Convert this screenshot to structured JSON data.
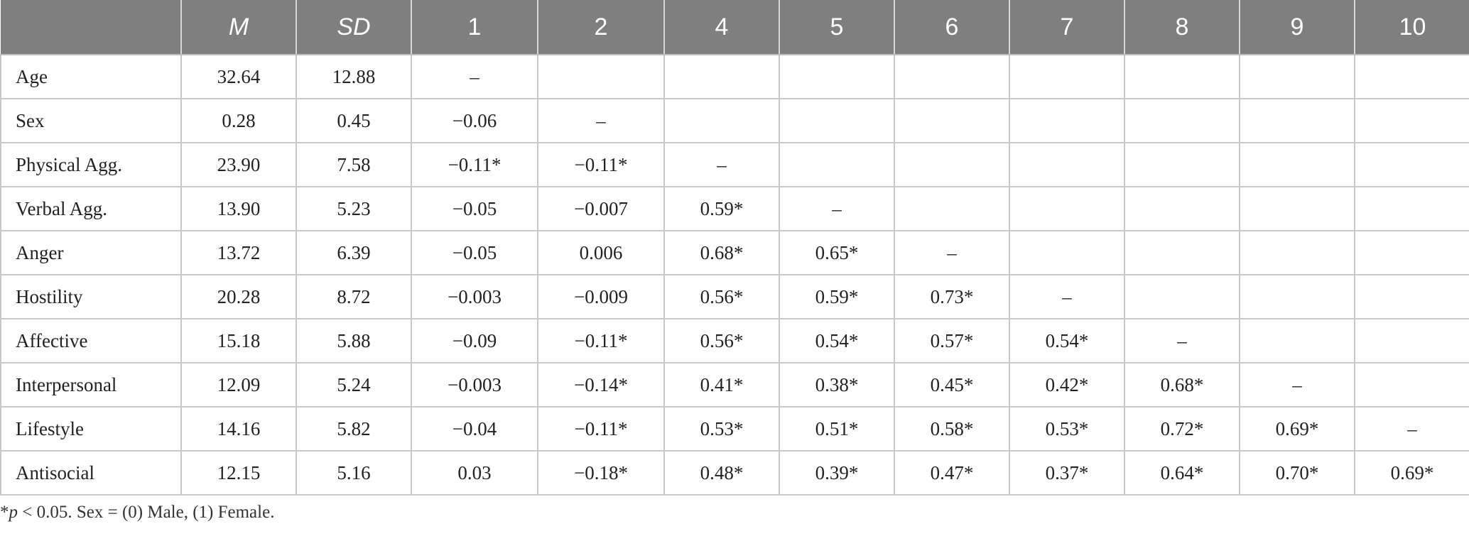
{
  "table": {
    "headers": [
      "",
      "M",
      "SD",
      "1",
      "2",
      "4",
      "5",
      "6",
      "7",
      "8",
      "9",
      "10"
    ],
    "rows": [
      {
        "label": "Age",
        "cells": [
          "32.64",
          "12.88",
          "–",
          "",
          "",
          "",
          "",
          "",
          "",
          "",
          ""
        ]
      },
      {
        "label": "Sex",
        "cells": [
          "0.28",
          "0.45",
          "−0.06",
          "–",
          "",
          "",
          "",
          "",
          "",
          "",
          ""
        ]
      },
      {
        "label": "Physical Agg.",
        "cells": [
          "23.90",
          "7.58",
          "−0.11*",
          "−0.11*",
          "–",
          "",
          "",
          "",
          "",
          "",
          ""
        ]
      },
      {
        "label": "Verbal Agg.",
        "cells": [
          "13.90",
          "5.23",
          "−0.05",
          "−0.007",
          "0.59*",
          "–",
          "",
          "",
          "",
          "",
          ""
        ]
      },
      {
        "label": "Anger",
        "cells": [
          "13.72",
          "6.39",
          "−0.05",
          "0.006",
          "0.68*",
          "0.65*",
          "–",
          "",
          "",
          "",
          ""
        ]
      },
      {
        "label": "Hostility",
        "cells": [
          "20.28",
          "8.72",
          "−0.003",
          "−0.009",
          "0.56*",
          "0.59*",
          "0.73*",
          "–",
          "",
          "",
          ""
        ]
      },
      {
        "label": "Affective",
        "cells": [
          "15.18",
          "5.88",
          "−0.09",
          "−0.11*",
          "0.56*",
          "0.54*",
          "0.57*",
          "0.54*",
          "–",
          "",
          ""
        ]
      },
      {
        "label": "Interpersonal",
        "cells": [
          "12.09",
          "5.24",
          "−0.003",
          "−0.14*",
          "0.41*",
          "0.38*",
          "0.45*",
          "0.42*",
          "0.68*",
          "–",
          ""
        ]
      },
      {
        "label": "Lifestyle",
        "cells": [
          "14.16",
          "5.82",
          "−0.04",
          "−0.11*",
          "0.53*",
          "0.51*",
          "0.58*",
          "0.53*",
          "0.72*",
          "0.69*",
          "–"
        ]
      },
      {
        "label": "Antisocial",
        "cells": [
          "12.15",
          "5.16",
          "0.03",
          "−0.18*",
          "0.48*",
          "0.39*",
          "0.47*",
          "0.37*",
          "0.64*",
          "0.70*",
          "0.69*"
        ]
      }
    ]
  },
  "footnote": {
    "star": "*",
    "p_symbol": "p",
    "text": " < 0.05. Sex = (0) Male, (1) Female."
  }
}
